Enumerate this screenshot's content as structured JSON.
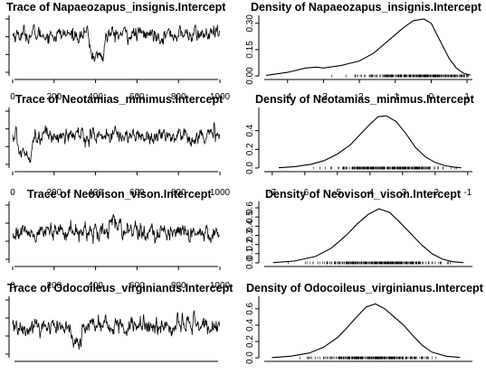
{
  "figure": {
    "background": "#ffffff",
    "line_color": "#000000"
  },
  "chart_data": [
    {
      "type": "line",
      "title": "Trace of Napaeozapus_insignis.Intercept",
      "x_ticks": [
        "0",
        "200",
        "400",
        "600",
        "800",
        "1000"
      ],
      "x_tick_values": [
        0,
        200,
        400,
        600,
        800,
        1000
      ],
      "y_ticks": [],
      "xlim": [
        0,
        1000
      ],
      "ylim": [
        -1.5,
        1.0
      ],
      "trace": {
        "n": 1000,
        "mean": 0.3,
        "sd": 0.22,
        "dips": [
          [
            370,
            440,
            -0.9
          ]
        ]
      }
    },
    {
      "type": "line",
      "title": "Density of Napaeozapus_insignis.Intercept",
      "x_ticks": [
        "-4",
        "-3",
        "-2",
        "-1",
        "0",
        "1"
      ],
      "x_tick_values": [
        -4,
        -3,
        -2,
        -1,
        0,
        1
      ],
      "y_ticks": [
        "0.00",
        "0.15",
        "0.30"
      ],
      "y_tick_values": [
        0.0,
        0.15,
        0.3
      ],
      "xlim": [
        -4.7,
        1.2
      ],
      "ylim": [
        -0.005,
        0.33
      ],
      "rug": true,
      "density": {
        "x": [
          -4.6,
          -4.0,
          -3.5,
          -3.2,
          -3.0,
          -2.5,
          -2.0,
          -1.6,
          -1.2,
          -0.8,
          -0.5,
          -0.2,
          0.0,
          0.15,
          0.3,
          0.5,
          0.7,
          0.9,
          1.1
        ],
        "y": [
          0.003,
          0.02,
          0.045,
          0.05,
          0.045,
          0.06,
          0.085,
          0.13,
          0.2,
          0.27,
          0.315,
          0.325,
          0.3,
          0.24,
          0.18,
          0.1,
          0.045,
          0.015,
          0.005
        ]
      }
    },
    {
      "type": "line",
      "title": "Trace of Neotamias_minimus.Intercept",
      "x_ticks": [
        "0",
        "200",
        "400",
        "600",
        "800",
        "1000"
      ],
      "x_tick_values": [
        0,
        200,
        400,
        600,
        800,
        1000
      ],
      "y_ticks": [],
      "xlim": [
        0,
        1000
      ],
      "ylim": [
        -1.5,
        1.5
      ],
      "trace": {
        "n": 1000,
        "mean": 0.2,
        "sd": 0.28,
        "dips": [
          [
            20,
            90,
            -0.8
          ]
        ]
      }
    },
    {
      "type": "line",
      "title": "Density of Neotamias_minimus.Intercept",
      "x_ticks": [
        "-7",
        "-6",
        "-5",
        "-4",
        "-3",
        "-2",
        "-1"
      ],
      "x_tick_values": [
        -7,
        -6,
        -5,
        -4,
        -3,
        -2,
        -1
      ],
      "y_ticks": [
        "0.0",
        "0.2",
        "0.4"
      ],
      "y_tick_values": [
        0.0,
        0.2,
        0.4
      ],
      "xlim": [
        -7.3,
        -0.8
      ],
      "ylim": [
        -0.01,
        0.62
      ],
      "rug": true,
      "density": {
        "x": [
          -6.8,
          -6.3,
          -5.8,
          -5.4,
          -5.0,
          -4.6,
          -4.3,
          -4.0,
          -3.75,
          -3.5,
          -3.2,
          -2.9,
          -2.6,
          -2.3,
          -2.0,
          -1.7,
          -1.4,
          -1.2
        ],
        "y": [
          0.003,
          0.015,
          0.04,
          0.08,
          0.15,
          0.25,
          0.36,
          0.47,
          0.55,
          0.56,
          0.5,
          0.37,
          0.22,
          0.12,
          0.06,
          0.025,
          0.008,
          0.003
        ]
      }
    },
    {
      "type": "line",
      "title": "Trace of Neovison_vison.Intercept",
      "x_ticks": [
        "0",
        "200",
        "400",
        "600",
        "800",
        "1000"
      ],
      "x_tick_values": [
        0,
        200,
        400,
        600,
        800,
        1000
      ],
      "y_ticks": [],
      "xlim": [
        0,
        1000
      ],
      "ylim": [
        -1.5,
        1.5
      ],
      "trace": {
        "n": 1000,
        "mean": 0.1,
        "sd": 0.3,
        "dips": [
          [
            450,
            520,
            0.4
          ]
        ]
      }
    },
    {
      "type": "line",
      "title": "Density of Neovison_vison.Intercept",
      "x_ticks": [],
      "x_tick_values": [],
      "y_ticks": [
        "0.0",
        "0.1",
        "0.2",
        "0.3",
        "0.4",
        "0.5",
        "0.6"
      ],
      "y_tick_values": [
        0.0,
        0.1,
        0.2,
        0.3,
        0.4,
        0.5,
        0.6
      ],
      "xlim": [
        -3.0,
        1.0
      ],
      "ylim": [
        -0.01,
        0.64
      ],
      "rug": true,
      "density": {
        "x": [
          -2.8,
          -2.4,
          -2.0,
          -1.7,
          -1.4,
          -1.2,
          -1.0,
          -0.8,
          -0.6,
          -0.4,
          -0.2,
          0.0,
          0.2,
          0.4,
          0.6,
          0.8
        ],
        "y": [
          0.003,
          0.02,
          0.07,
          0.16,
          0.31,
          0.43,
          0.53,
          0.59,
          0.55,
          0.44,
          0.32,
          0.2,
          0.1,
          0.04,
          0.012,
          0.003
        ]
      }
    },
    {
      "type": "line",
      "title": "Trace of Odocoileus_virginianus.Intercept",
      "x_ticks": [],
      "x_tick_values": [],
      "y_ticks": [],
      "xlim": [
        0,
        1000
      ],
      "ylim": [
        -1.5,
        1.5
      ],
      "trace": {
        "n": 1000,
        "mean": 0.15,
        "sd": 0.32,
        "dips": [
          [
            280,
            330,
            -0.9
          ]
        ]
      }
    },
    {
      "type": "line",
      "title": "Density of Odocoileus_virginianus.Intercept",
      "x_ticks": [],
      "x_tick_values": [],
      "y_ticks": [
        "0.0",
        "0.2",
        "0.4",
        "0.6"
      ],
      "y_tick_values": [
        0.0,
        0.2,
        0.4,
        0.6
      ],
      "xlim": [
        -3.0,
        1.5
      ],
      "ylim": [
        -0.01,
        0.72
      ],
      "rug": true,
      "density": {
        "x": [
          -2.8,
          -2.4,
          -2.0,
          -1.7,
          -1.4,
          -1.2,
          -1.0,
          -0.8,
          -0.6,
          -0.4,
          -0.2,
          0.0,
          0.2,
          0.4,
          0.6,
          0.9,
          1.2
        ],
        "y": [
          0.003,
          0.02,
          0.06,
          0.13,
          0.25,
          0.37,
          0.5,
          0.62,
          0.66,
          0.6,
          0.5,
          0.4,
          0.27,
          0.15,
          0.07,
          0.02,
          0.004
        ]
      }
    }
  ]
}
